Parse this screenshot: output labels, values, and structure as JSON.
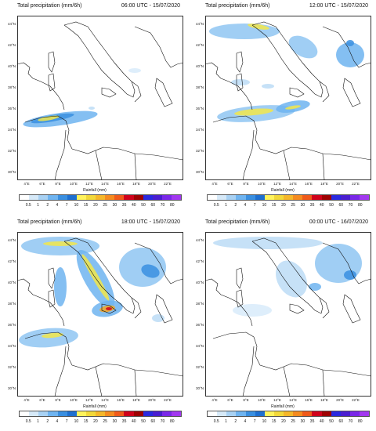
{
  "panels": [
    {
      "title_left": "Total precipitation (mm/6h)",
      "title_right": "06:00 UTC - 15/07/2020",
      "blobs": [
        {
          "cx": 55,
          "cy": 132,
          "rx": 48,
          "ry": 8,
          "rot": -8,
          "color": "#6fb4f0"
        },
        {
          "cx": 45,
          "cy": 131,
          "rx": 28,
          "ry": 4,
          "rot": -10,
          "color": "#3a8fe0"
        },
        {
          "cx": 40,
          "cy": 131,
          "rx": 14,
          "ry": 2.5,
          "rot": -10,
          "color": "#f2e64a"
        },
        {
          "cx": 95,
          "cy": 118,
          "rx": 4,
          "ry": 2,
          "rot": 0,
          "color": "#bcdcf6"
        },
        {
          "cx": 150,
          "cy": 70,
          "rx": 8,
          "ry": 3,
          "rot": 0,
          "color": "#d8ebfa"
        }
      ]
    },
    {
      "title_left": "Total precipitation (mm/6h)",
      "title_right": "12:00 UTC - 15/07/2020",
      "blobs": [
        {
          "cx": 50,
          "cy": 20,
          "rx": 45,
          "ry": 10,
          "rot": 0,
          "color": "#8fc5f2"
        },
        {
          "cx": 68,
          "cy": 14,
          "rx": 14,
          "ry": 3,
          "rot": 10,
          "color": "#f2e64a"
        },
        {
          "cx": 125,
          "cy": 40,
          "rx": 20,
          "ry": 12,
          "rot": 30,
          "color": "#8fc5f2"
        },
        {
          "cx": 185,
          "cy": 50,
          "rx": 18,
          "ry": 16,
          "rot": 0,
          "color": "#6fb4f0"
        },
        {
          "cx": 185,
          "cy": 35,
          "rx": 5,
          "ry": 4,
          "rot": 0,
          "color": "#3a8fe0"
        },
        {
          "cx": 65,
          "cy": 125,
          "rx": 50,
          "ry": 10,
          "rot": -5,
          "color": "#8fc5f2"
        },
        {
          "cx": 62,
          "cy": 123,
          "rx": 25,
          "ry": 4,
          "rot": -5,
          "color": "#f2e64a"
        },
        {
          "cx": 112,
          "cy": 116,
          "rx": 22,
          "ry": 7,
          "rot": -10,
          "color": "#6fb4f0"
        },
        {
          "cx": 112,
          "cy": 117,
          "rx": 10,
          "ry": 2,
          "rot": -10,
          "color": "#f2e64a"
        },
        {
          "cx": 45,
          "cy": 85,
          "rx": 12,
          "ry": 4,
          "rot": 0,
          "color": "#bcdcf6"
        },
        {
          "cx": 80,
          "cy": 90,
          "rx": 8,
          "ry": 3,
          "rot": 0,
          "color": "#bcdcf6"
        }
      ]
    },
    {
      "title_left": "Total precipitation (mm/6h)",
      "title_right": "18:00 UTC - 15/07/2020",
      "blobs": [
        {
          "cx": 55,
          "cy": 18,
          "rx": 50,
          "ry": 12,
          "rot": 0,
          "color": "#8fc5f2"
        },
        {
          "cx": 55,
          "cy": 15,
          "rx": 22,
          "ry": 3,
          "rot": 0,
          "color": "#f2e64a"
        },
        {
          "cx": 100,
          "cy": 60,
          "rx": 14,
          "ry": 42,
          "rot": -30,
          "color": "#6fb4f0"
        },
        {
          "cx": 100,
          "cy": 58,
          "rx": 4,
          "ry": 34,
          "rot": -30,
          "color": "#f2e64a"
        },
        {
          "cx": 160,
          "cy": 45,
          "rx": 30,
          "ry": 25,
          "rot": 0,
          "color": "#8fc5f2"
        },
        {
          "cx": 170,
          "cy": 50,
          "rx": 12,
          "ry": 8,
          "rot": 20,
          "color": "#3a8fe0"
        },
        {
          "cx": 55,
          "cy": 70,
          "rx": 8,
          "ry": 25,
          "rot": 0,
          "color": "#6fb4f0"
        },
        {
          "cx": 115,
          "cy": 98,
          "rx": 20,
          "ry": 10,
          "rot": -10,
          "color": "#6fb4f0"
        },
        {
          "cx": 115,
          "cy": 98,
          "rx": 10,
          "ry": 4,
          "rot": -10,
          "color": "#f5a623"
        },
        {
          "cx": 117,
          "cy": 98,
          "rx": 4,
          "ry": 2,
          "rot": 0,
          "color": "#d0021b"
        },
        {
          "cx": 40,
          "cy": 135,
          "rx": 38,
          "ry": 12,
          "rot": -5,
          "color": "#8fc5f2"
        },
        {
          "cx": 45,
          "cy": 132,
          "rx": 14,
          "ry": 3,
          "rot": -5,
          "color": "#f2e64a"
        },
        {
          "cx": 180,
          "cy": 110,
          "rx": 8,
          "ry": 5,
          "rot": 0,
          "color": "#bcdcf6"
        }
      ]
    },
    {
      "title_left": "Total precipitation (mm/6h)",
      "title_right": "00:00 UTC - 16/07/2020",
      "blobs": [
        {
          "cx": 80,
          "cy": 14,
          "rx": 70,
          "ry": 8,
          "rot": 0,
          "color": "#bcdcf6"
        },
        {
          "cx": 110,
          "cy": 60,
          "rx": 18,
          "ry": 25,
          "rot": -30,
          "color": "#bcdcf6"
        },
        {
          "cx": 170,
          "cy": 40,
          "rx": 30,
          "ry": 25,
          "rot": 0,
          "color": "#8fc5f2"
        },
        {
          "cx": 185,
          "cy": 55,
          "rx": 8,
          "ry": 6,
          "rot": 0,
          "color": "#3a8fe0"
        },
        {
          "cx": 140,
          "cy": 70,
          "rx": 8,
          "ry": 5,
          "rot": 0,
          "color": "#6fb4f0"
        },
        {
          "cx": 60,
          "cy": 100,
          "rx": 25,
          "ry": 8,
          "rot": 0,
          "color": "#d8ebfa"
        }
      ]
    }
  ],
  "lat_labels": [
    "44°N",
    "42°N",
    "40°N",
    "38°N",
    "36°N",
    "34°N",
    "32°N",
    "30°N"
  ],
  "lon_labels": [
    "4°E",
    "6°E",
    "8°E",
    "10°E",
    "12°E",
    "14°E",
    "16°E",
    "18°E",
    "20°E",
    "22°E"
  ],
  "colorbar": {
    "title": "Rainfall  (mm)",
    "ticks": [
      "0.5",
      "1",
      "2",
      "4",
      "7",
      "10",
      "15",
      "20",
      "25",
      "30",
      "35",
      "40",
      "50",
      "60",
      "70",
      "80"
    ],
    "colors": [
      "#ffffff",
      "#d6e9f8",
      "#a8d1f3",
      "#6fb4f0",
      "#3a8fe0",
      "#1e6fd0",
      "#fff35c",
      "#f2d83a",
      "#f5b72a",
      "#f58b1f",
      "#f05a1a",
      "#d0021b",
      "#9e0202",
      "#2a2ae0",
      "#4a1ed0",
      "#7a28e8",
      "#a238f0"
    ]
  }
}
